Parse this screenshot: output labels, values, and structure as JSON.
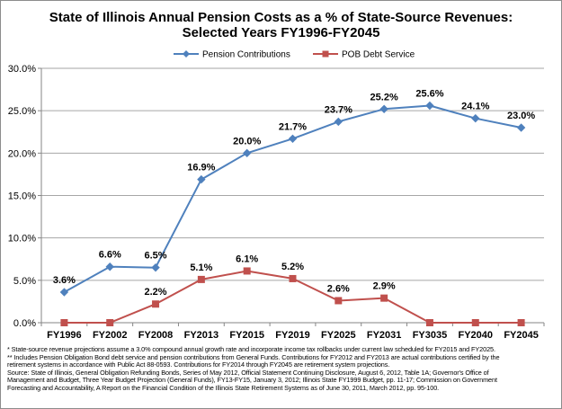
{
  "chart_data": {
    "type": "line",
    "title": "State of Illinois Annual Pension Costs as a % of State-Source Revenues:",
    "subtitle": "Selected Years FY1996-FY2045",
    "categories": [
      "FY1996",
      "FY2002",
      "FY2008",
      "FY2013",
      "FY2015",
      "FY2019",
      "FY2025",
      "FY2031",
      "FY3035",
      "FY2040",
      "FY2045"
    ],
    "ylim": [
      0,
      30
    ],
    "yticks": [
      "0.0%",
      "5.0%",
      "10.0%",
      "15.0%",
      "20.0%",
      "25.0%",
      "30.0%"
    ],
    "legend_position": "top",
    "grid": true,
    "series": [
      {
        "name": "Pension Contributions",
        "color": "#4f81bd",
        "marker": "diamond",
        "values": [
          3.6,
          6.6,
          6.5,
          16.9,
          20.0,
          21.7,
          23.7,
          25.2,
          25.6,
          24.1,
          23.0
        ],
        "labels": [
          "3.6%",
          "6.6%",
          "6.5%",
          "16.9%",
          "20.0%",
          "21.7%",
          "23.7%",
          "25.2%",
          "25.6%",
          "24.1%",
          "23.0%"
        ]
      },
      {
        "name": "POB Debt Service",
        "color": "#c0504d",
        "marker": "square",
        "values": [
          0,
          0,
          2.2,
          5.1,
          6.1,
          5.2,
          2.6,
          2.9,
          0,
          0,
          0
        ],
        "labels": [
          "",
          "",
          "2.2%",
          "5.1%",
          "6.1%",
          "5.2%",
          "2.6%",
          "2.9%",
          "",
          "",
          ""
        ]
      }
    ]
  },
  "footnotes": [
    "* State-source revenue projections assume a 3.0% compound annual growth rate and incorporate income tax rollbacks under current law scheduled for FY2015 and FY2025.",
    "** Includes Pension Obligation Bond debt service and pension contributions from General Funds. Contributions for FY2012 and FY2013 are actual contributions certified by the",
    "retirement systems in accordance with Public Act 88-0593. Contributions for FY2014 through FY2045 are retirement system projections.",
    "Source: State of Illinois, General Obligation Refunding Bonds, Series of May 2012, Official Statement Continuing Disclosure, August 6, 2012, Table 1A; Governor's Office of",
    "Management and Budget, Three Year Budget Projection (General Funds), FY13-FY15, January 3, 2012; Illinois State FY1999 Budget, pp. 11-17; Commission on Government",
    "Forecasting and Accountability, A Report on the Financial Condition of the Illinois State Retirement Systems as of June 30, 2011, March 2012, pp. 95-100."
  ]
}
